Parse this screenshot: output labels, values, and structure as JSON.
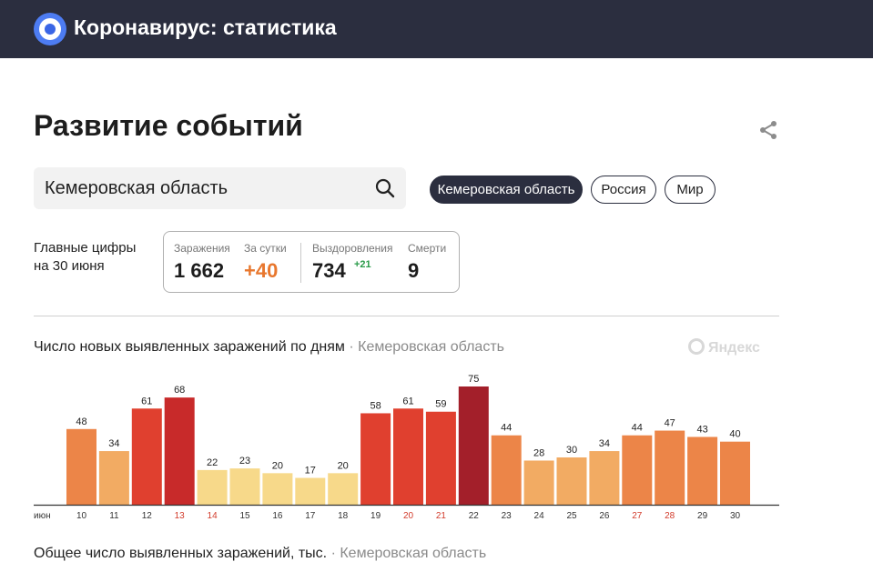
{
  "header": {
    "app_title": "Коронавирус: статистика"
  },
  "page": {
    "title": "Развитие событий"
  },
  "search": {
    "value": "Кемеровская область"
  },
  "filters": [
    {
      "label": "Кемеровская область",
      "active": true
    },
    {
      "label": "Россия",
      "active": false
    },
    {
      "label": "Мир",
      "active": false
    }
  ],
  "main_figures": {
    "label_line1": "Главные цифры",
    "label_line2": "на 30 июня",
    "infections_label": "Заражения",
    "infections_value": "1 662",
    "daily_label": "За сутки",
    "daily_value": "+40",
    "recovered_label": "Выздоровления",
    "recovered_value": "734",
    "recovered_delta": "+21",
    "deaths_label": "Смерти",
    "deaths_value": "9"
  },
  "chart_section": {
    "title": "Число новых выявленных заражений по дням",
    "separator": "·",
    "region": "Кемеровская область",
    "watermark": "Яндекс"
  },
  "chart_data": {
    "type": "bar",
    "title": "Число новых выявленных заражений по дням",
    "month_label": "июн",
    "categories": [
      "10",
      "11",
      "12",
      "13",
      "14",
      "15",
      "16",
      "17",
      "18",
      "19",
      "20",
      "21",
      "22",
      "23",
      "24",
      "25",
      "26",
      "27",
      "28",
      "29",
      "30"
    ],
    "values": [
      48,
      34,
      61,
      68,
      22,
      23,
      20,
      17,
      20,
      58,
      61,
      59,
      75,
      44,
      28,
      30,
      34,
      44,
      47,
      43,
      40
    ],
    "weekend_days": [
      "13",
      "14",
      "20",
      "21",
      "27",
      "28"
    ],
    "colors": {
      "darkest": "#a31f2a",
      "dark": "#c82a2a",
      "red": "#e0402f",
      "orange": "#ec8548",
      "light_orange": "#f2ab63",
      "yellow": "#f7d98a",
      "weekend_tick": "#d23b2b",
      "tick": "#333333",
      "axis": "#333333"
    }
  },
  "footer_section": {
    "title": "Общее число выявленных заражений, тыс.",
    "separator": "·",
    "region": "Кемеровская область"
  }
}
